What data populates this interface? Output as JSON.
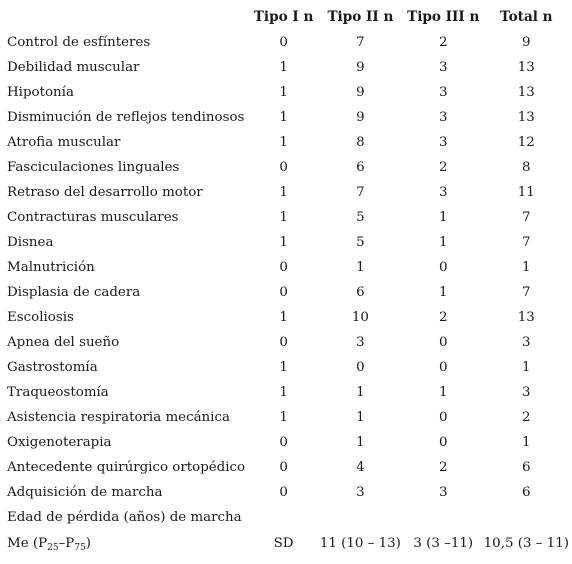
{
  "headers": [
    "",
    "Tipo I n",
    "Tipo II n",
    "Tipo III n",
    "Total n"
  ],
  "rows": [
    {
      "label": "Control de esfínteres",
      "t1": "0",
      "t2": "7",
      "t3": "2",
      "total": "9"
    },
    {
      "label": "Debilidad muscular",
      "t1": "1",
      "t2": "9",
      "t3": "3",
      "total": "13"
    },
    {
      "label": "Hipotonía",
      "t1": "1",
      "t2": "9",
      "t3": "3",
      "total": "13"
    },
    {
      "label": "Disminución de reflejos tendinosos",
      "t1": "1",
      "t2": "9",
      "t3": "3",
      "total": "13"
    },
    {
      "label": "Atrofia muscular",
      "t1": "1",
      "t2": "8",
      "t3": "3",
      "total": "12"
    },
    {
      "label": "Fasciculaciones linguales",
      "t1": "0",
      "t2": "6",
      "t3": "2",
      "total": "8"
    },
    {
      "label": "Retraso del desarrollo motor",
      "t1": "1",
      "t2": "7",
      "t3": "3",
      "total": "11"
    },
    {
      "label": "Contracturas musculares",
      "t1": "1",
      "t2": "5",
      "t3": "1",
      "total": "7"
    },
    {
      "label": "Disnea",
      "t1": "1",
      "t2": "5",
      "t3": "1",
      "total": "7"
    },
    {
      "label": "Malnutrición",
      "t1": "0",
      "t2": "1",
      "t3": "0",
      "total": "1"
    },
    {
      "label": "Displasia de cadera",
      "t1": "0",
      "t2": "6",
      "t3": "1",
      "total": "7"
    },
    {
      "label": "Escoliosis",
      "t1": "1",
      "t2": "10",
      "t3": "2",
      "total": "13"
    },
    {
      "label": "Apnea del sueño",
      "t1": "0",
      "t2": "3",
      "t3": "0",
      "total": "3"
    },
    {
      "label": "Gastrostomía",
      "t1": "1",
      "t2": "0",
      "t3": "0",
      "total": "1"
    },
    {
      "label": "Traqueostomía",
      "t1": "1",
      "t2": "1",
      "t3": "1",
      "total": "3"
    },
    {
      "label": "Asistencia respiratoria mecánica",
      "t1": "1",
      "t2": "1",
      "t3": "0",
      "total": "2"
    },
    {
      "label": "Oxigenoterapia",
      "t1": "0",
      "t2": "1",
      "t3": "0",
      "total": "1"
    },
    {
      "label": "Antecedente quirúrgico ortopédico",
      "t1": "0",
      "t2": "4",
      "t3": "2",
      "total": "6"
    },
    {
      "label": "Adquisición de marcha",
      "t1": "0",
      "t2": "3",
      "t3": "3",
      "total": "6"
    },
    {
      "label": "Edad de pérdida (años) de marcha",
      "t1": "",
      "t2": "",
      "t3": "",
      "total": ""
    }
  ],
  "last_row": {
    "label_prefix": "Me (P",
    "sub1": "25",
    "label_mid": "–P",
    "sub2": "75",
    "label_suffix": ")",
    "t1": "SD",
    "t2": "11 (10 – 13)",
    "t3": "3 (3 –11)",
    "total": "10,5 (3 – 11)"
  }
}
